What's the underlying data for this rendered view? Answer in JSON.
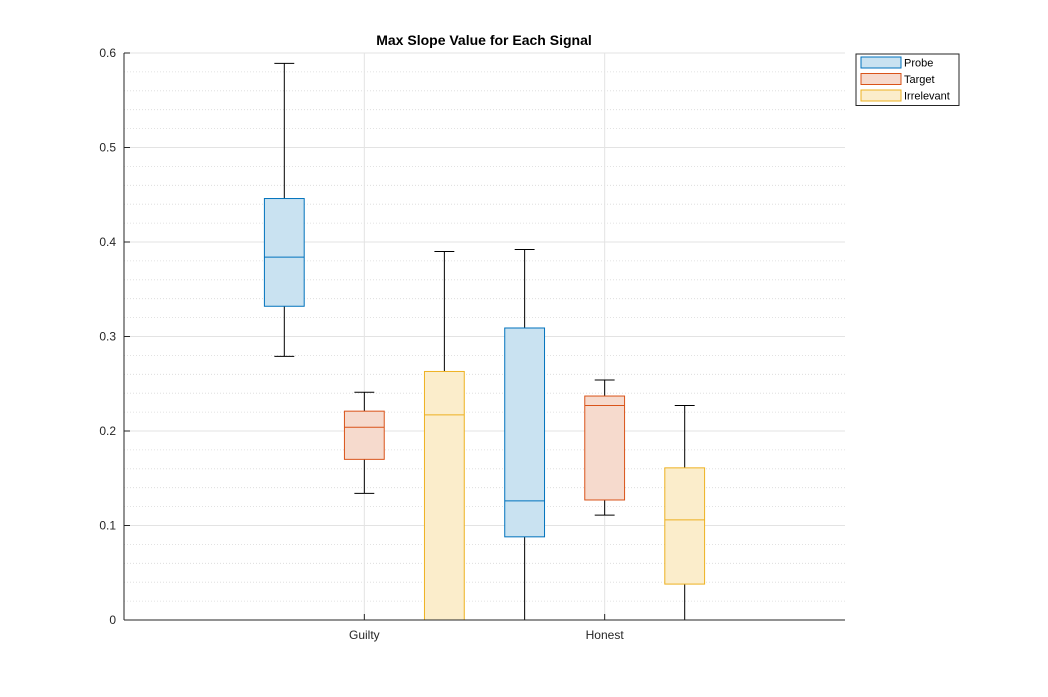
{
  "chart_data": {
    "type": "boxplot",
    "title": "Max Slope Value for Each Signal",
    "xlabel": "",
    "ylabel": "",
    "categories": [
      "Guilty",
      "Honest"
    ],
    "ylim": [
      0,
      0.6
    ],
    "yticks": [
      0,
      0.1,
      0.2,
      0.3,
      0.4,
      0.5,
      0.6
    ],
    "ytick_labels": [
      "0",
      "0.1",
      "0.2",
      "0.3",
      "0.4",
      "0.5",
      "0.6"
    ],
    "grid": "major and minor",
    "legend_position": "top-right, outside",
    "series": [
      {
        "name": "Probe",
        "color": "#0072BD",
        "fill": "#C9E2F1",
        "boxes": [
          {
            "category": "Guilty",
            "whisker_low": 0.279,
            "q1": 0.332,
            "median": 0.384,
            "q3": 0.446,
            "whisker_high": 0.589
          },
          {
            "category": "Honest",
            "whisker_low": 0.0,
            "q1": 0.088,
            "median": 0.126,
            "q3": 0.309,
            "whisker_high": 0.392
          }
        ]
      },
      {
        "name": "Target",
        "color": "#D95319",
        "fill": "#F6DACD",
        "boxes": [
          {
            "category": "Guilty",
            "whisker_low": 0.134,
            "q1": 0.17,
            "median": 0.204,
            "q3": 0.221,
            "whisker_high": 0.241
          },
          {
            "category": "Honest",
            "whisker_low": 0.111,
            "q1": 0.127,
            "median": 0.227,
            "q3": 0.237,
            "whisker_high": 0.254
          }
        ]
      },
      {
        "name": "Irrelevant",
        "color": "#EDB120",
        "fill": "#FBEDCB",
        "boxes": [
          {
            "category": "Guilty",
            "whisker_low": 0.0,
            "q1": 0.0,
            "median": 0.217,
            "q3": 0.263,
            "whisker_high": 0.39
          },
          {
            "category": "Honest",
            "whisker_low": 0.0,
            "q1": 0.038,
            "median": 0.106,
            "q3": 0.161,
            "whisker_high": 0.227
          }
        ]
      }
    ]
  }
}
